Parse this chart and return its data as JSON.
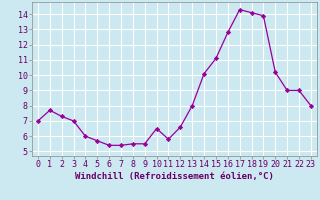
{
  "x": [
    0,
    1,
    2,
    3,
    4,
    5,
    6,
    7,
    8,
    9,
    10,
    11,
    12,
    13,
    14,
    15,
    16,
    17,
    18,
    19,
    20,
    21,
    22,
    23
  ],
  "y": [
    7.0,
    7.7,
    7.3,
    7.0,
    6.0,
    5.7,
    5.4,
    5.4,
    5.5,
    5.5,
    6.5,
    5.8,
    6.6,
    8.0,
    10.1,
    11.1,
    12.8,
    14.3,
    14.1,
    13.9,
    10.2,
    9.0,
    9.0,
    8.0
  ],
  "line_color": "#990099",
  "marker": "D",
  "marker_size": 2.2,
  "bg_color": "#cce8f0",
  "grid_color": "#ffffff",
  "xlabel": "Windchill (Refroidissement éolien,°C)",
  "xlabel_fontsize": 6.5,
  "ylabel_ticks": [
    5,
    6,
    7,
    8,
    9,
    10,
    11,
    12,
    13,
    14
  ],
  "xlim": [
    -0.5,
    23.5
  ],
  "ylim": [
    4.7,
    14.8
  ],
  "tick_fontsize": 6.0,
  "font_family": "monospace"
}
